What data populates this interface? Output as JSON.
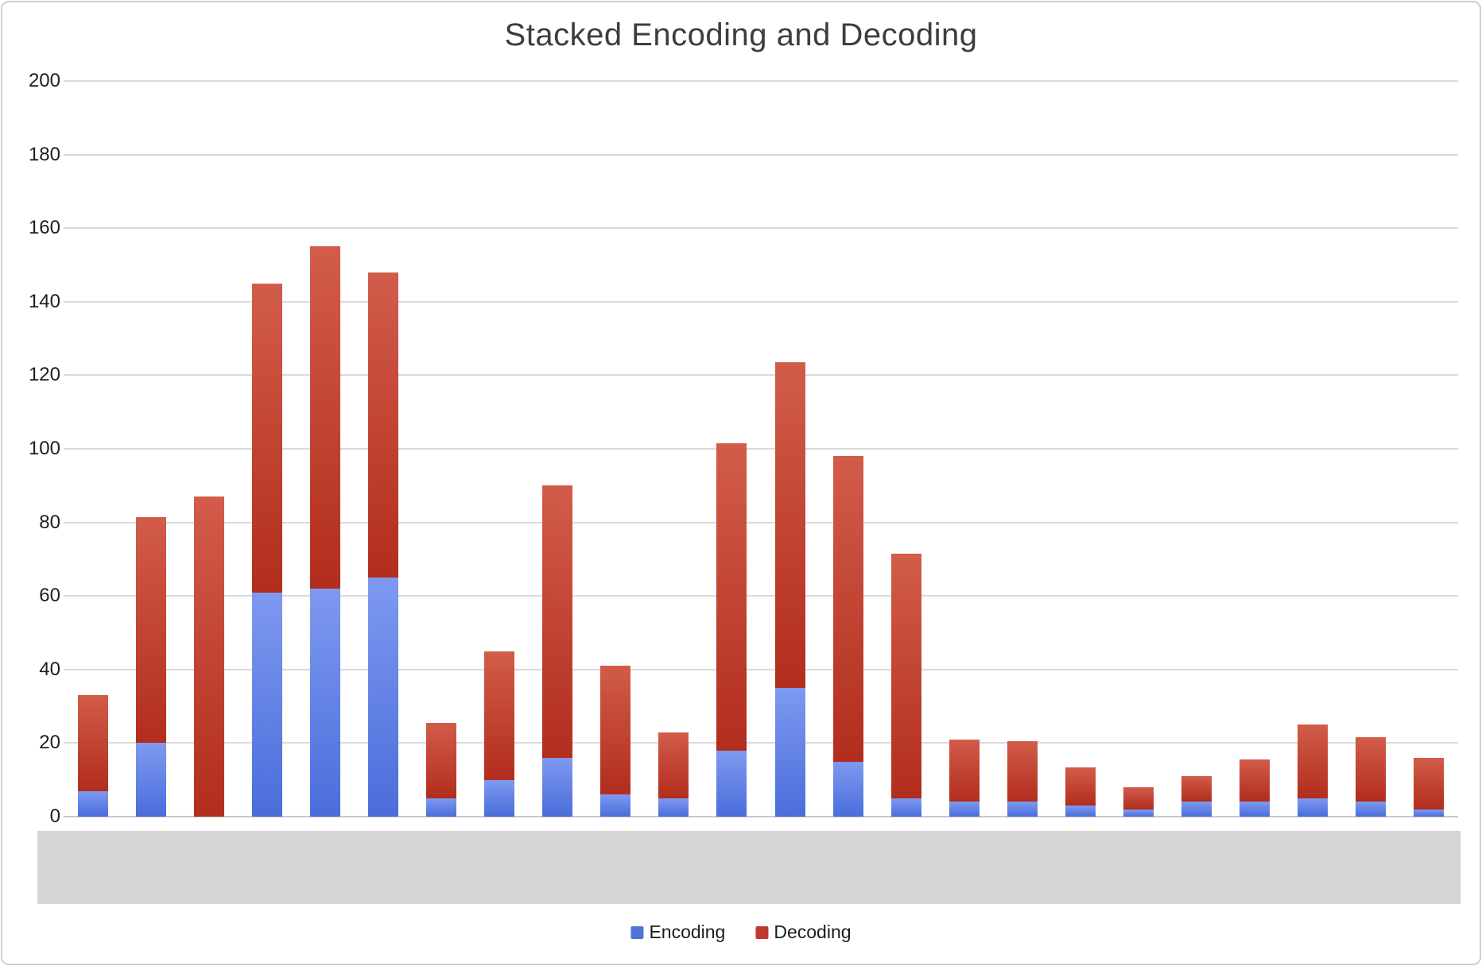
{
  "window": {
    "background": "#ffffff",
    "border_color": "#cfcfcf"
  },
  "chart_data": {
    "type": "bar",
    "stacked": true,
    "title": "Stacked Encoding and Decoding",
    "num_bars": 24,
    "x_tick_labels_visible": false,
    "x_axis_area": "solid gray band (labels not visible)",
    "series": [
      {
        "name": "Encoding",
        "color": "#4f74d9",
        "gradient_top": "#7e99f0",
        "gradient_bottom": "#4a6ddb",
        "values": [
          7,
          20,
          0,
          61,
          62,
          65,
          5,
          10,
          16,
          6,
          5,
          18,
          35,
          15,
          5,
          4,
          4,
          3,
          2,
          4,
          4,
          5,
          4,
          2
        ]
      },
      {
        "name": "Decoding",
        "color": "#c03a2b",
        "gradient_top": "#d25c4a",
        "gradient_bottom": "#b22d1d",
        "values": [
          26,
          61.5,
          87,
          84,
          93,
          83,
          20.5,
          35,
          74,
          35,
          18,
          83.5,
          88.5,
          83,
          66.5,
          17,
          16.5,
          10.5,
          6,
          7,
          11.5,
          20,
          17.5,
          14
        ]
      }
    ],
    "stack_totals": [
      33,
      81.5,
      87,
      145,
      155,
      148,
      25.5,
      45,
      90,
      41,
      23,
      101.5,
      123.5,
      98,
      71.5,
      21,
      20.5,
      13.5,
      8,
      11,
      15.5,
      25,
      21.5,
      16
    ],
    "ylim": [
      0,
      200
    ],
    "yticks": [
      0,
      20,
      40,
      60,
      80,
      100,
      120,
      140,
      160,
      180,
      200
    ],
    "grid": true,
    "grid_color": "#dadada",
    "legend_position": "bottom"
  },
  "colors": {
    "band": "#d5d5d5",
    "title_text": "#3d3d3d",
    "tick_text": "#1e1e1e"
  }
}
